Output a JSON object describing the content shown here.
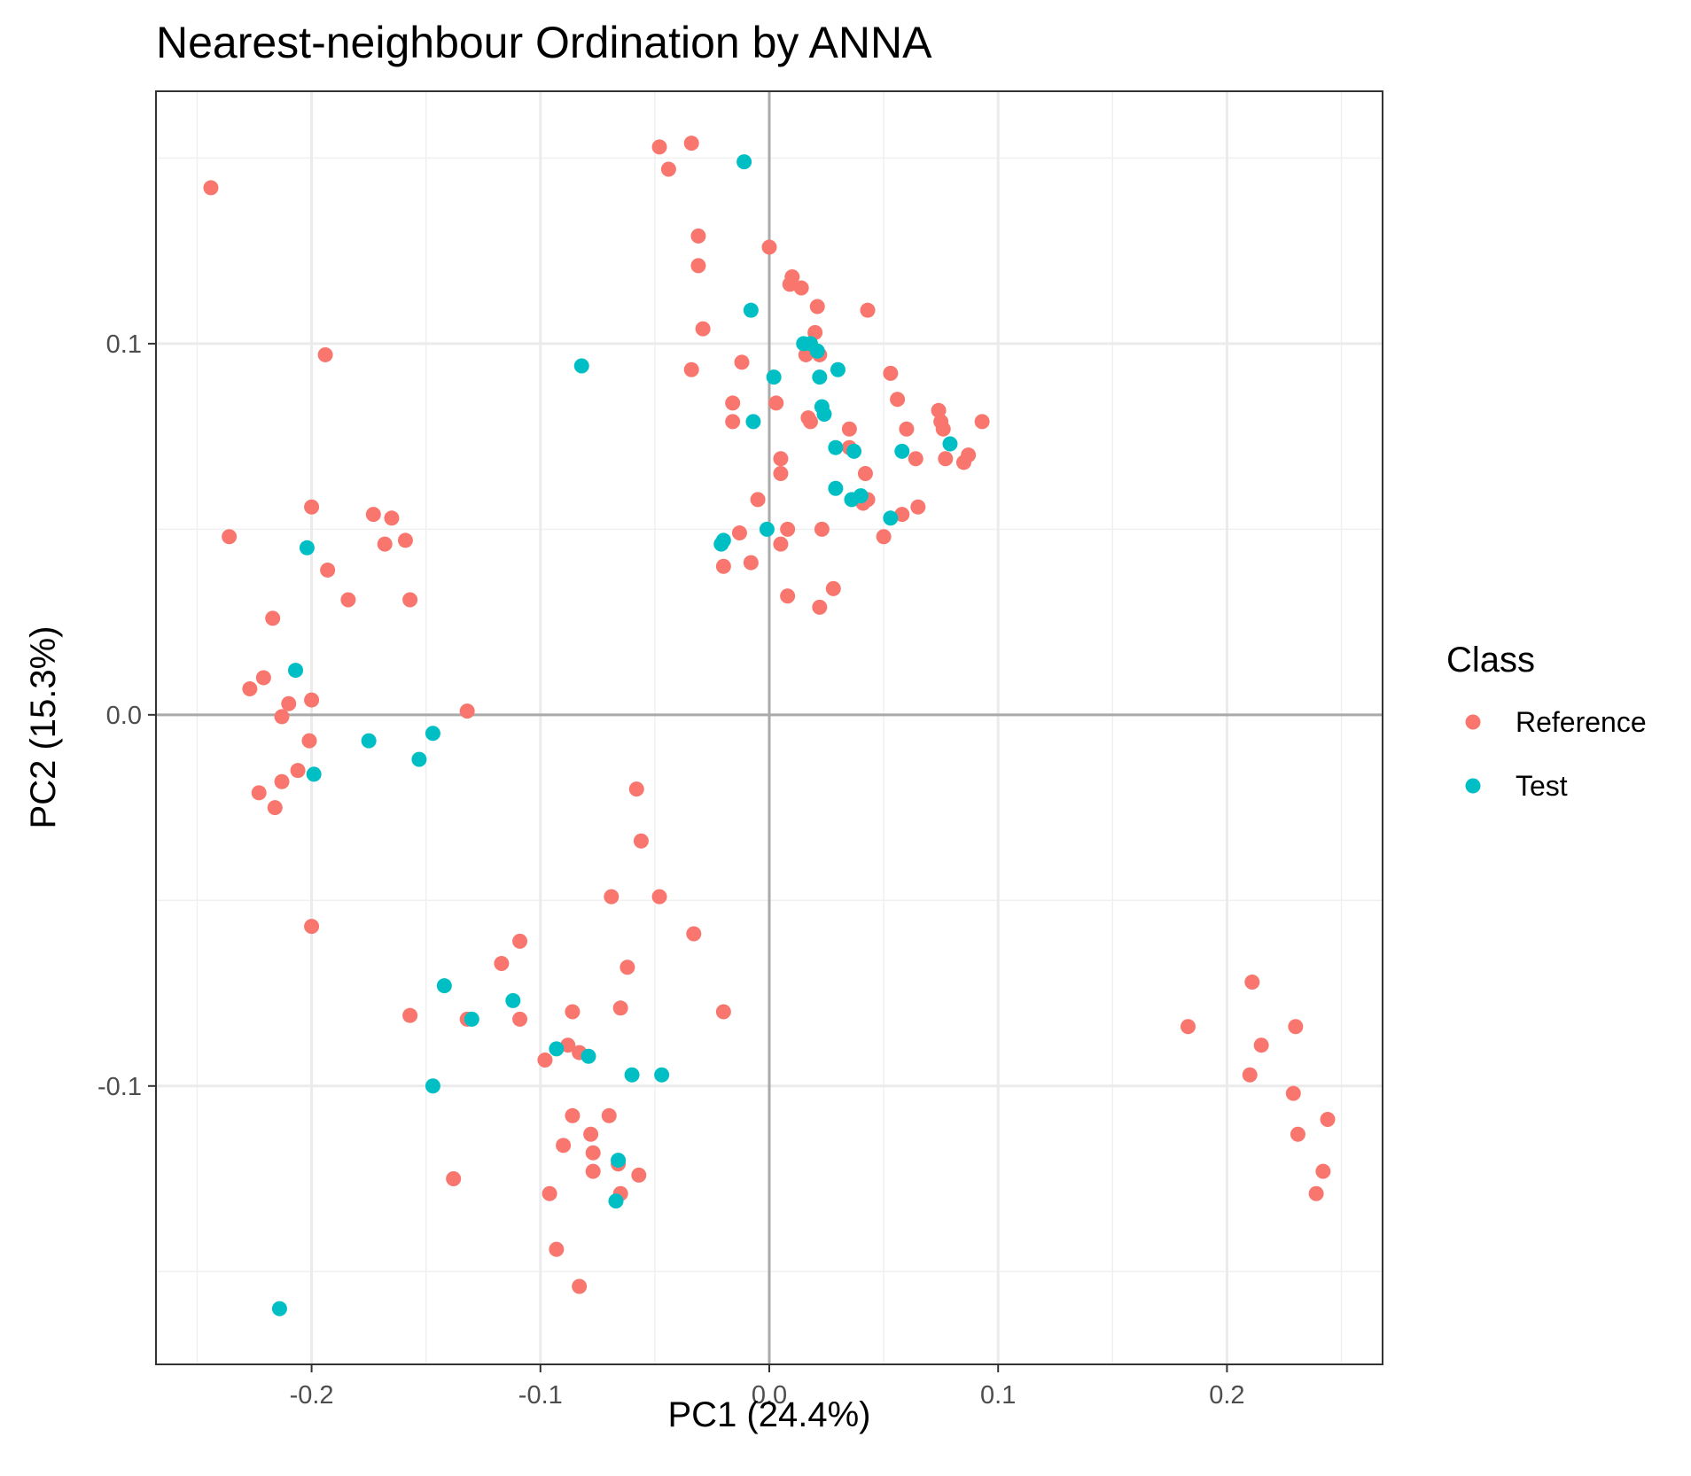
{
  "chart_data": {
    "type": "scatter",
    "title": "Nearest-neighbour Ordination by ANNA",
    "xlabel": "PC1 (24.4%)",
    "ylabel": "PC2 (15.3%)",
    "xlim": [
      -0.268,
      0.268
    ],
    "ylim": [
      -0.175,
      0.168
    ],
    "xticks": [
      -0.2,
      -0.1,
      0.0,
      0.1,
      0.2
    ],
    "xtick_labels": [
      "-0.2",
      "-0.1",
      "0.0",
      "0.1",
      "0.2"
    ],
    "yticks": [
      -0.1,
      0.0,
      0.1
    ],
    "ytick_labels": [
      "-0.1",
      "0.0",
      "0.1"
    ],
    "grid": true,
    "reference_lines": {
      "x": 0,
      "y": 0
    },
    "legend": {
      "title": "Class",
      "position": "right",
      "entries": [
        {
          "label": "Reference",
          "color": "#F8766D"
        },
        {
          "label": "Test",
          "color": "#00BFC4"
        }
      ]
    },
    "series": [
      {
        "name": "Reference",
        "color": "#F8766D",
        "points": [
          [
            -0.244,
            0.142
          ],
          [
            -0.236,
            0.048
          ],
          [
            -0.194,
            0.097
          ],
          [
            -0.2,
            0.056
          ],
          [
            -0.193,
            0.039
          ],
          [
            -0.173,
            0.054
          ],
          [
            -0.165,
            0.053
          ],
          [
            -0.168,
            0.046
          ],
          [
            -0.159,
            0.047
          ],
          [
            -0.184,
            0.031
          ],
          [
            -0.157,
            0.031
          ],
          [
            -0.217,
            0.026
          ],
          [
            -0.221,
            0.01
          ],
          [
            -0.227,
            0.007
          ],
          [
            -0.21,
            0.003
          ],
          [
            -0.2,
            0.004
          ],
          [
            -0.213,
            -0.0005
          ],
          [
            -0.201,
            -0.007
          ],
          [
            -0.206,
            -0.015
          ],
          [
            -0.213,
            -0.018
          ],
          [
            -0.223,
            -0.021
          ],
          [
            -0.216,
            -0.025
          ],
          [
            -0.132,
            0.001
          ],
          [
            -0.2,
            -0.057
          ],
          [
            -0.048,
            0.153
          ],
          [
            -0.034,
            0.154
          ],
          [
            -0.044,
            0.147
          ],
          [
            -0.031,
            0.129
          ],
          [
            -0.031,
            0.121
          ],
          [
            -0.029,
            0.104
          ],
          [
            -0.034,
            0.093
          ],
          [
            -0.012,
            0.095
          ],
          [
            -0.016,
            0.084
          ],
          [
            -0.016,
            0.079
          ],
          [
            -0.005,
            0.058
          ],
          [
            -0.013,
            0.049
          ],
          [
            -0.008,
            0.041
          ],
          [
            -0.02,
            0.04
          ],
          [
            0.0,
            0.126
          ],
          [
            0.01,
            0.118
          ],
          [
            0.009,
            0.116
          ],
          [
            0.014,
            0.115
          ],
          [
            0.021,
            0.11
          ],
          [
            0.02,
            0.103
          ],
          [
            0.016,
            0.097
          ],
          [
            0.022,
            0.097
          ],
          [
            0.043,
            0.109
          ],
          [
            0.053,
            0.092
          ],
          [
            0.003,
            0.084
          ],
          [
            0.017,
            0.08
          ],
          [
            0.018,
            0.079
          ],
          [
            0.035,
            0.077
          ],
          [
            0.056,
            0.085
          ],
          [
            0.06,
            0.077
          ],
          [
            0.074,
            0.082
          ],
          [
            0.075,
            0.079
          ],
          [
            0.076,
            0.077
          ],
          [
            0.093,
            0.079
          ],
          [
            0.005,
            0.069
          ],
          [
            0.005,
            0.065
          ],
          [
            0.035,
            0.072
          ],
          [
            0.042,
            0.065
          ],
          [
            0.064,
            0.069
          ],
          [
            0.077,
            0.069
          ],
          [
            0.085,
            0.068
          ],
          [
            0.087,
            0.07
          ],
          [
            0.041,
            0.057
          ],
          [
            0.043,
            0.058
          ],
          [
            0.058,
            0.054
          ],
          [
            0.065,
            0.056
          ],
          [
            0.05,
            0.048
          ],
          [
            0.005,
            0.046
          ],
          [
            0.008,
            0.05
          ],
          [
            0.023,
            0.05
          ],
          [
            0.008,
            0.032
          ],
          [
            0.028,
            0.034
          ],
          [
            0.022,
            0.029
          ],
          [
            -0.058,
            -0.02
          ],
          [
            -0.056,
            -0.034
          ],
          [
            -0.069,
            -0.049
          ],
          [
            -0.048,
            -0.049
          ],
          [
            -0.033,
            -0.059
          ],
          [
            -0.109,
            -0.061
          ],
          [
            -0.117,
            -0.067
          ],
          [
            -0.062,
            -0.068
          ],
          [
            -0.157,
            -0.081
          ],
          [
            -0.132,
            -0.082
          ],
          [
            -0.109,
            -0.082
          ],
          [
            -0.086,
            -0.08
          ],
          [
            -0.065,
            -0.079
          ],
          [
            -0.02,
            -0.08
          ],
          [
            -0.088,
            -0.089
          ],
          [
            -0.083,
            -0.091
          ],
          [
            -0.098,
            -0.093
          ],
          [
            -0.086,
            -0.108
          ],
          [
            -0.07,
            -0.108
          ],
          [
            -0.078,
            -0.113
          ],
          [
            -0.09,
            -0.116
          ],
          [
            -0.077,
            -0.118
          ],
          [
            -0.077,
            -0.123
          ],
          [
            -0.066,
            -0.121
          ],
          [
            -0.057,
            -0.124
          ],
          [
            -0.138,
            -0.125
          ],
          [
            -0.096,
            -0.129
          ],
          [
            -0.065,
            -0.129
          ],
          [
            -0.093,
            -0.144
          ],
          [
            -0.083,
            -0.154
          ],
          [
            0.183,
            -0.084
          ],
          [
            0.211,
            -0.072
          ],
          [
            0.215,
            -0.089
          ],
          [
            0.21,
            -0.097
          ],
          [
            0.23,
            -0.084
          ],
          [
            0.229,
            -0.102
          ],
          [
            0.231,
            -0.113
          ],
          [
            0.244,
            -0.109
          ],
          [
            0.242,
            -0.123
          ],
          [
            0.239,
            -0.129
          ]
        ]
      },
      {
        "name": "Test",
        "color": "#00BFC4",
        "points": [
          [
            -0.011,
            0.149
          ],
          [
            -0.008,
            0.109
          ],
          [
            -0.082,
            0.094
          ],
          [
            0.002,
            0.091
          ],
          [
            0.015,
            0.1
          ],
          [
            0.018,
            0.1
          ],
          [
            0.021,
            0.098
          ],
          [
            0.022,
            0.091
          ],
          [
            0.03,
            0.093
          ],
          [
            -0.007,
            0.079
          ],
          [
            0.023,
            0.083
          ],
          [
            0.024,
            0.081
          ],
          [
            0.029,
            0.072
          ],
          [
            0.037,
            0.071
          ],
          [
            0.058,
            0.071
          ],
          [
            0.079,
            0.073
          ],
          [
            0.029,
            0.061
          ],
          [
            0.036,
            0.058
          ],
          [
            0.04,
            0.059
          ],
          [
            0.053,
            0.053
          ],
          [
            -0.001,
            0.05
          ],
          [
            -0.02,
            0.047
          ],
          [
            -0.021,
            0.046
          ],
          [
            -0.202,
            0.045
          ],
          [
            -0.207,
            0.012
          ],
          [
            -0.175,
            -0.007
          ],
          [
            -0.147,
            -0.005
          ],
          [
            -0.199,
            -0.016
          ],
          [
            -0.153,
            -0.012
          ],
          [
            -0.142,
            -0.073
          ],
          [
            -0.112,
            -0.077
          ],
          [
            -0.13,
            -0.082
          ],
          [
            -0.093,
            -0.09
          ],
          [
            -0.079,
            -0.092
          ],
          [
            -0.06,
            -0.097
          ],
          [
            -0.047,
            -0.097
          ],
          [
            -0.147,
            -0.1
          ],
          [
            -0.066,
            -0.12
          ],
          [
            -0.067,
            -0.131
          ],
          [
            -0.214,
            -0.16
          ]
        ]
      }
    ]
  }
}
